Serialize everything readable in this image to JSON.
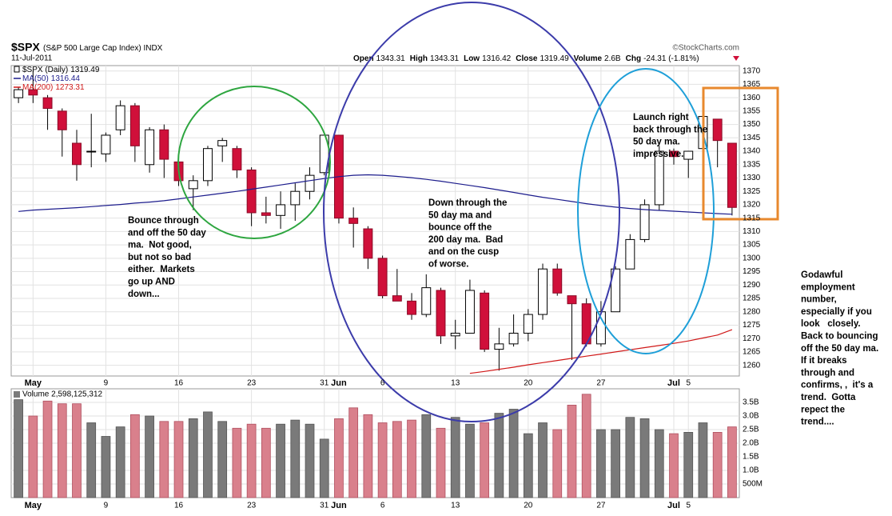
{
  "chart_data": [
    {
      "type": "candlestick",
      "title": "$SPX",
      "subtitle": "(S&P 500 Large Cap Index)",
      "exchange": "INDX",
      "date": "11-Jul-2011",
      "credit": "©StockCharts.com",
      "quote": [
        {
          "label": "Open",
          "value": "1343.31"
        },
        {
          "label": "High",
          "value": "1343.31"
        },
        {
          "label": "Low",
          "value": "1316.42"
        },
        {
          "label": "Close",
          "value": "1319.49"
        },
        {
          "label": "Volume",
          "value": "2.6B"
        },
        {
          "label": "Chg",
          "value": "-24.31 (-1.81%)"
        }
      ],
      "price_name": "$SPX (Daily)",
      "price_last": "1319.49",
      "categories": [
        null,
        "May",
        null,
        null,
        null,
        null,
        "9",
        null,
        null,
        null,
        null,
        "16",
        null,
        null,
        null,
        null,
        "23",
        null,
        null,
        null,
        null,
        "31",
        "Jun",
        null,
        null,
        "6",
        null,
        null,
        null,
        null,
        "13",
        null,
        null,
        null,
        null,
        "20",
        null,
        null,
        null,
        null,
        "27",
        null,
        null,
        null,
        null,
        "Jul",
        "5",
        null,
        null,
        null
      ],
      "open": [
        1360,
        1363,
        1360,
        1355,
        1343,
        1340,
        1339,
        1348,
        1357,
        1335,
        1348,
        1336,
        1326,
        1329,
        1342,
        1341,
        1333,
        1317,
        1316,
        1320,
        1325,
        1332,
        1346,
        1315,
        1311,
        1300,
        1286,
        1284,
        1279,
        1288,
        1271,
        1272,
        1287,
        1266,
        1268,
        1272,
        1279,
        1296,
        1286,
        1283,
        1268,
        1280,
        1296,
        1307,
        1320,
        1340,
        1337,
        1341,
        1352,
        1343
      ],
      "high": [
        1364,
        1370,
        1361,
        1356,
        1348,
        1354,
        1347,
        1359,
        1358,
        1349,
        1350,
        1340,
        1331,
        1342,
        1345,
        1342,
        1334,
        1323,
        1325,
        1328,
        1334,
        1346,
        1346,
        1319,
        1312,
        1301,
        1296,
        1287,
        1294,
        1289,
        1277,
        1292,
        1288,
        1274,
        1279,
        1281,
        1298,
        1298,
        1286,
        1285,
        1284,
        1297,
        1309,
        1322,
        1342,
        1341,
        1340,
        1357,
        1352,
        1343
      ],
      "low": [
        1358,
        1358,
        1348,
        1338,
        1329,
        1334,
        1336,
        1346,
        1336,
        1332,
        1330,
        1327,
        1318,
        1327,
        1336,
        1330,
        1312,
        1313,
        1311,
        1314,
        1322,
        1331,
        1313,
        1304,
        1296,
        1285,
        1284,
        1277,
        1278,
        1268,
        1266,
        1272,
        1265,
        1258,
        1267,
        1269,
        1277,
        1286,
        1262,
        1267,
        1267,
        1280,
        1296,
        1306,
        1318,
        1335,
        1330,
        1341,
        1334,
        1316
      ],
      "close": [
        1363,
        1361,
        1356,
        1348,
        1335,
        1340,
        1346,
        1357,
        1342,
        1348,
        1337,
        1329,
        1329,
        1341,
        1344,
        1333,
        1317,
        1316,
        1320,
        1325,
        1331,
        1346,
        1315,
        1313,
        1300,
        1286,
        1284,
        1279,
        1289,
        1271,
        1272,
        1288,
        1266,
        1268,
        1272,
        1279,
        1296,
        1287,
        1283,
        1268,
        1280,
        1296,
        1307,
        1320,
        1340,
        1338,
        1340,
        1353,
        1344,
        1319
      ],
      "up_color": "#000000",
      "down_color": "#d0103a",
      "series": [
        {
          "name": "MA(50)",
          "last_label": "1316.44",
          "color": "#1c1c8c",
          "values": [
            1317.5,
            1318,
            1318.3,
            1318.6,
            1318.9,
            1319.3,
            1319.7,
            1320.1,
            1320.6,
            1321,
            1321.5,
            1322.2,
            1322.9,
            1323.6,
            1324.3,
            1325,
            1325.8,
            1326.6,
            1327.4,
            1328.2,
            1329,
            1329.8,
            1330.5,
            1331,
            1331.2,
            1331,
            1330.6,
            1330.1,
            1329.5,
            1328.8,
            1328,
            1327.2,
            1326.4,
            1325.5,
            1324.6,
            1323.7,
            1322.8,
            1322,
            1321.2,
            1320.4,
            1319.7,
            1319.1,
            1318.6,
            1318.2,
            1317.9,
            1317.6,
            1317.3,
            1317,
            1316.7,
            1316.44
          ]
        },
        {
          "name": "MA(200)",
          "last_label": "1273.31",
          "color": "#d01818",
          "values": [
            null,
            null,
            null,
            null,
            null,
            null,
            null,
            null,
            null,
            null,
            null,
            null,
            null,
            null,
            null,
            null,
            null,
            null,
            null,
            null,
            null,
            null,
            null,
            null,
            null,
            null,
            null,
            null,
            null,
            null,
            null,
            1257,
            1257.7,
            1258.5,
            1259.3,
            1260.2,
            1261,
            1261.8,
            1262.6,
            1263.4,
            1264.2,
            1265,
            1265.8,
            1266.6,
            1267.4,
            1268.2,
            1269.1,
            1270.2,
            1271.3,
            1273.31
          ]
        }
      ],
      "ylim": [
        1256,
        1372
      ],
      "yticks": [
        1260,
        1265,
        1270,
        1275,
        1280,
        1285,
        1290,
        1295,
        1300,
        1305,
        1310,
        1315,
        1320,
        1325,
        1330,
        1335,
        1340,
        1345,
        1350,
        1355,
        1360,
        1365,
        1370
      ],
      "grid": true,
      "annotations": [
        {
          "color": "#2e9e3e",
          "lines": [
            "Bounce through",
            "and off the 50 day",
            "ma.  Not good,",
            "but not so bad",
            "either.  Markets",
            "go up AND",
            "down..."
          ]
        },
        {
          "color": "#3c3caa",
          "lines": [
            "Down through the",
            "50 day ma and",
            "bounce off the",
            "200 day ma.  Bad",
            "and on the cusp",
            "of worse."
          ]
        },
        {
          "color": "#1e9fd8",
          "lines": [
            "Launch right",
            "back through the",
            "50 day ma.",
            "impressive."
          ]
        },
        {
          "color": "#e8892e",
          "lines": [
            "Godawful",
            "employment",
            "number,",
            "especially if you",
            "look   closely.",
            "Back to bouncing",
            "off the 50 day ma.",
            "If it breaks",
            "through and",
            "confirms, ,  it's a",
            "trend.  Gotta",
            "repect the",
            "trend...."
          ]
        }
      ]
    },
    {
      "type": "bar",
      "title": "Volume 2,598,125,312",
      "categories": [
        null,
        "May",
        null,
        null,
        null,
        null,
        "9",
        null,
        null,
        null,
        null,
        "16",
        null,
        null,
        null,
        null,
        "23",
        null,
        null,
        null,
        null,
        "31",
        "Jun",
        null,
        null,
        "6",
        null,
        null,
        null,
        null,
        "13",
        null,
        null,
        null,
        null,
        "20",
        null,
        null,
        null,
        null,
        "27",
        null,
        null,
        null,
        null,
        "Jul",
        "5",
        null,
        null,
        null
      ],
      "values": [
        3.6,
        3.0,
        3.55,
        3.45,
        3.45,
        2.75,
        2.25,
        2.6,
        3.05,
        3.0,
        2.8,
        2.8,
        2.9,
        3.15,
        2.8,
        2.55,
        2.7,
        2.55,
        2.7,
        2.85,
        2.7,
        2.15,
        2.9,
        3.3,
        3.05,
        2.75,
        2.8,
        2.85,
        3.05,
        2.55,
        2.95,
        2.7,
        2.75,
        3.1,
        3.25,
        2.35,
        2.75,
        2.5,
        3.4,
        3.8,
        2.5,
        2.5,
        2.95,
        2.9,
        2.5,
        2.35,
        2.4,
        2.75,
        2.4,
        2.6
      ],
      "up_color": "#7a7a7a",
      "down_color": "#d9808c",
      "ylim": [
        0,
        4
      ],
      "yticks": [
        {
          "value": 0.5,
          "label": "500M"
        },
        {
          "value": 1.0,
          "label": "1.0B"
        },
        {
          "value": 1.5,
          "label": "1.5B"
        },
        {
          "value": 2.0,
          "label": "2.0B"
        },
        {
          "value": 2.5,
          "label": "2.5B"
        },
        {
          "value": 3.0,
          "label": "3.0B"
        },
        {
          "value": 3.5,
          "label": "3.5B"
        }
      ],
      "grid": true
    }
  ]
}
